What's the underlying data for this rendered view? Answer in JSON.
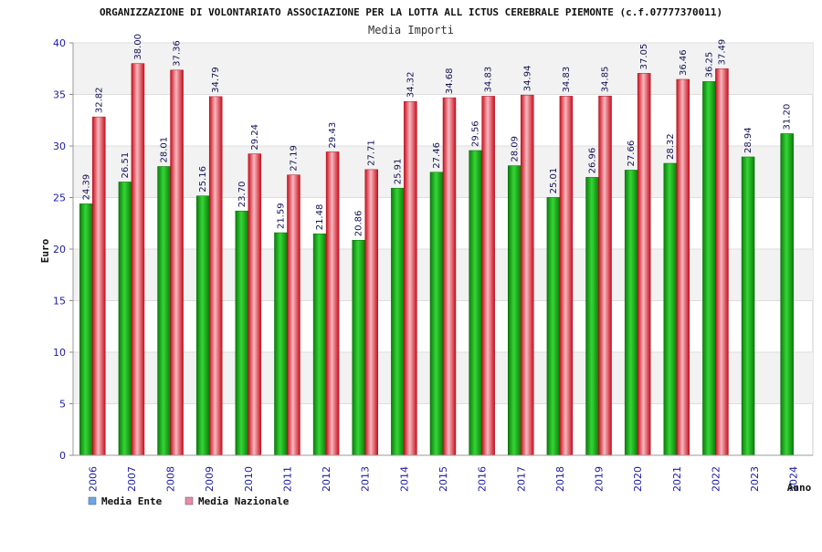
{
  "chart_data": {
    "type": "bar",
    "title": "ORGANIZZAZIONE DI VOLONTARIATO ASSOCIAZIONE PER LA LOTTA ALL ICTUS CEREBRALE PIEMONTE (c.f.07777370011)",
    "subtitle": "Media Importi",
    "xlabel": "Anno",
    "ylabel": "Euro",
    "ylim": [
      0,
      40
    ],
    "yticks": [
      0,
      5,
      10,
      15,
      20,
      25,
      30,
      35,
      40
    ],
    "grid": true,
    "legend_position": "bottom-left",
    "categories": [
      "2006",
      "2007",
      "2008",
      "2009",
      "2010",
      "2011",
      "2012",
      "2013",
      "2014",
      "2015",
      "2016",
      "2017",
      "2018",
      "2019",
      "2020",
      "2021",
      "2022",
      "2023",
      "2024"
    ],
    "series": [
      {
        "name": "Media Ente",
        "color": "#1aa51a",
        "legend_color": "#6aa6e8",
        "values": [
          24.39,
          26.51,
          28.01,
          25.16,
          23.7,
          21.59,
          21.48,
          20.86,
          25.91,
          27.46,
          29.56,
          28.09,
          25.01,
          26.96,
          27.66,
          28.32,
          36.25,
          28.94,
          31.2
        ],
        "labels": [
          "24.39",
          "26.51",
          "28.01",
          "25.16",
          "23.70",
          "21.59",
          "21.48",
          "20.86",
          "25.91",
          "27.46",
          "29.56",
          "28.09",
          "25.01",
          "26.96",
          "27.66",
          "28.32",
          "36.25",
          "28.94",
          "31.20"
        ]
      },
      {
        "name": "Media Nazionale",
        "color": "#e8283a",
        "legend_color": "#e88aa8",
        "values": [
          32.82,
          38.0,
          37.36,
          34.79,
          29.24,
          27.19,
          29.43,
          27.71,
          34.32,
          34.68,
          34.83,
          34.94,
          34.83,
          34.85,
          37.05,
          36.46,
          37.49,
          null,
          null
        ],
        "labels": [
          "32.82",
          "38.00",
          "37.36",
          "34.79",
          "29.24",
          "27.19",
          "29.43",
          "27.71",
          "34.32",
          "34.68",
          "34.83",
          "34.94",
          "34.83",
          "34.85",
          "37.05",
          "36.46",
          "37.49",
          "",
          ""
        ]
      }
    ]
  }
}
